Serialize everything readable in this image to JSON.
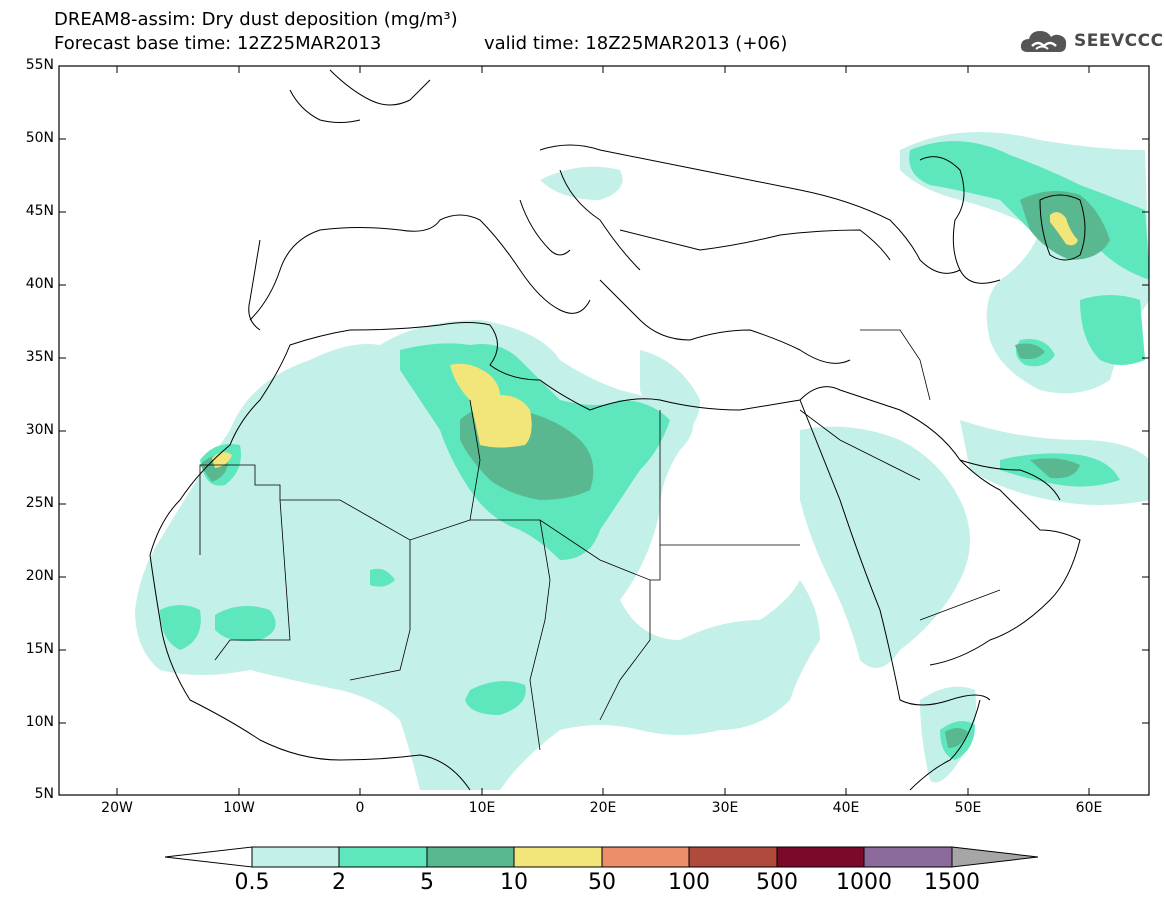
{
  "title": {
    "line1": "DREAM8-assim: Dry dust deposition (mg/m³)",
    "base": "Forecast base time: 12Z25MAR2013",
    "valid": "valid time: 18Z25MAR2013 (+06)"
  },
  "logo": {
    "icon": "cloud-logo-icon",
    "text": "SEEVCCC"
  },
  "axes": {
    "lat_labels": [
      "55N",
      "50N",
      "45N",
      "40N",
      "35N",
      "30N",
      "25N",
      "20N",
      "15N",
      "10N",
      "5N"
    ],
    "lon_labels": [
      "20W",
      "10W",
      "0",
      "10E",
      "20E",
      "30E",
      "40E",
      "50E",
      "60E"
    ]
  },
  "colors": {
    "c1": "#c3f0e8",
    "c2": "#5ee6bc",
    "c3": "#5ab890",
    "c4": "#f2e67a",
    "c5": "#ec8f69",
    "c6": "#b04a3c",
    "c7": "#7a0a2a",
    "c8": "#8c6a9c",
    "c9": "#a6a6a6"
  },
  "colorbar": {
    "labels": [
      "0.5",
      "2",
      "5",
      "10",
      "50",
      "100",
      "500",
      "1000",
      "1500"
    ]
  }
}
